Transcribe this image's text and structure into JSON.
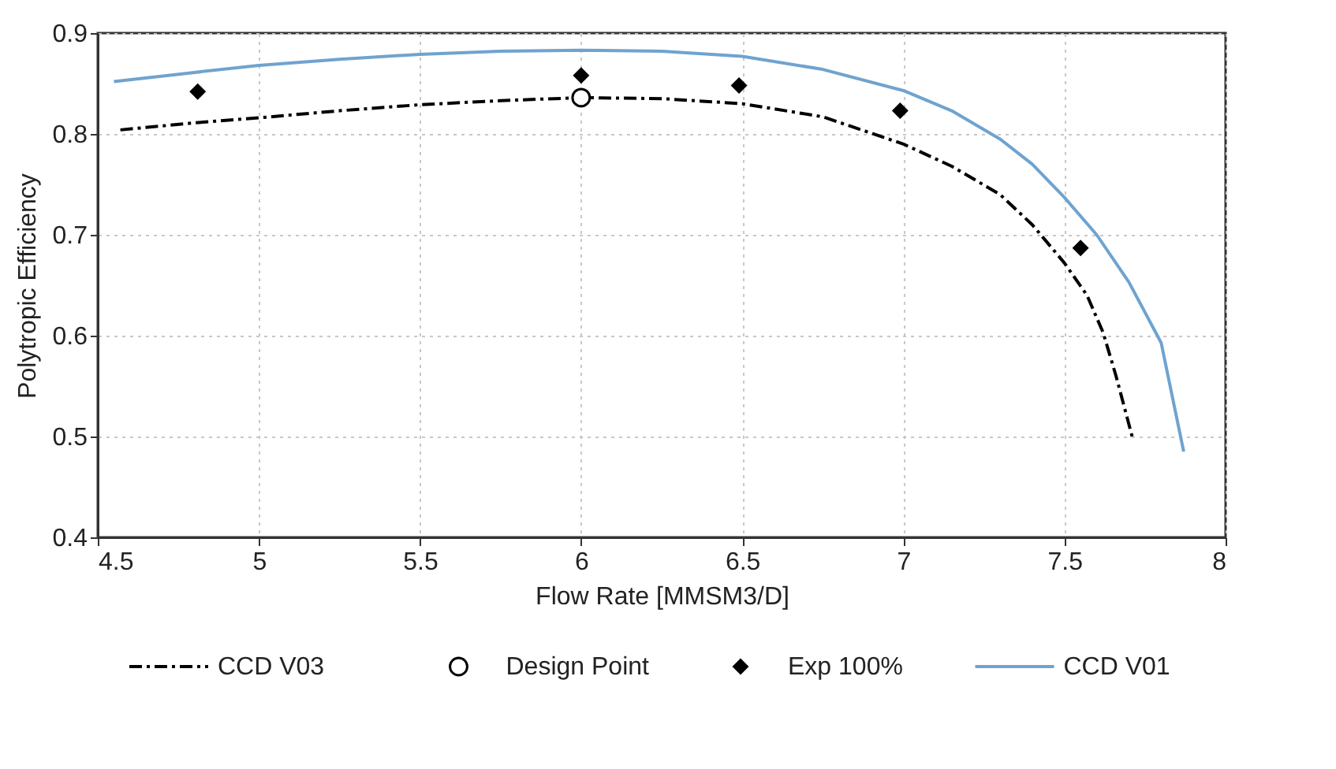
{
  "chart_data": {
    "type": "line",
    "xlabel": "Flow Rate [MMSM3/D]",
    "ylabel": "Polytropic Efficiency",
    "xlim": [
      4.5,
      8
    ],
    "xticks": [
      4.5,
      5,
      5.5,
      6,
      6.5,
      7,
      7.5,
      8
    ],
    "ylim": [
      0.4,
      0.9
    ],
    "yticks": [
      0.4,
      0.5,
      0.6,
      0.7,
      0.8,
      0.9
    ],
    "grid": true,
    "legend": "bottom",
    "series": [
      {
        "name": "CCD V03",
        "color": "#000000",
        "line_style": "dashdot",
        "marker": "none",
        "x": [
          4.57,
          4.8,
          5,
          5.25,
          5.5,
          5.75,
          6,
          6.25,
          6.5,
          6.75,
          7,
          7.15,
          7.3,
          7.4,
          7.5,
          7.57,
          7.62,
          7.66,
          7.71
        ],
        "values": [
          0.804,
          0.811,
          0.816,
          0.823,
          0.829,
          0.833,
          0.836,
          0.835,
          0.83,
          0.817,
          0.79,
          0.768,
          0.74,
          0.71,
          0.672,
          0.64,
          0.603,
          0.56,
          0.5
        ]
      },
      {
        "name": "Design Point",
        "type": "scatter",
        "color": "#000000",
        "marker": "circle",
        "x": [
          6.0
        ],
        "values": [
          0.836
        ]
      },
      {
        "name": "Exp 100%",
        "type": "scatter",
        "color": "#000000",
        "marker": "diamond",
        "x": [
          4.81,
          6.0,
          6.49,
          6.99,
          7.55
        ],
        "values": [
          0.842,
          0.858,
          0.848,
          0.823,
          0.687
        ]
      },
      {
        "name": "CCD V01",
        "color": "#6fa3cf",
        "line_style": "solid",
        "marker": "none",
        "x": [
          4.55,
          4.8,
          5,
          5.25,
          5.5,
          5.75,
          6,
          6.25,
          6.5,
          6.75,
          7,
          7.15,
          7.3,
          7.4,
          7.5,
          7.6,
          7.7,
          7.8,
          7.87
        ],
        "values": [
          0.852,
          0.861,
          0.868,
          0.874,
          0.879,
          0.882,
          0.883,
          0.882,
          0.877,
          0.864,
          0.843,
          0.823,
          0.795,
          0.77,
          0.737,
          0.7,
          0.653,
          0.593,
          0.485
        ]
      }
    ]
  }
}
